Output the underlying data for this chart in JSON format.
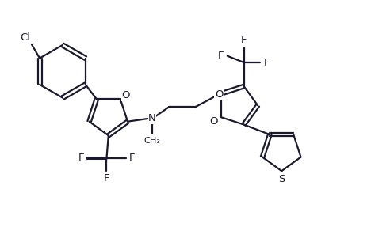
{
  "background_color": "#ffffff",
  "line_color": "#1a1a2e",
  "line_width": 1.6,
  "font_size": 9.5,
  "figsize": [
    4.68,
    2.87
  ],
  "dpi": 100,
  "xlim": [
    0,
    10
  ],
  "ylim": [
    0,
    6.2
  ]
}
